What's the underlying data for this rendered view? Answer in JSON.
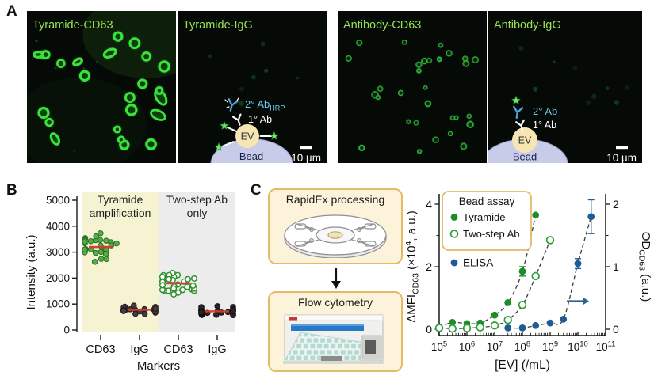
{
  "colors": {
    "accent_border": "#e5b966",
    "box_bg": "#fcf3da",
    "title_green": "#98e352",
    "micro_bg": "#060a06",
    "bright_ring": "#3ce23c",
    "dim_ring": "#2fae38",
    "faint_dot": "#1f7a26",
    "bead_fill": "#c9cce8",
    "bead_edge": "#989fc6",
    "ev_fill": "#f7e5b4",
    "ab2_blue": "#4f9fd9",
    "ab2_text": "#74c6ef",
    "star_fill": "#70e86e",
    "star_edge": "#2f9e36",
    "median_red": "#d04028",
    "yellow_region": "#f6f3d3",
    "gray_region": "#ececec",
    "green_filled": "#1e8c28",
    "green_open_edge": "#2e9e38",
    "elisa_blue": "#1f5c95",
    "dash_line": "#3a3a3a",
    "axis_ink": "#1a1a1a"
  },
  "panelA": {
    "label": "A",
    "images": [
      {
        "title": "Tyramide-CD63",
        "style": "bright-rings",
        "count": 24,
        "seed": 7
      },
      {
        "title": "Tyramide-IgG",
        "style": "faint-dots",
        "count": 7,
        "seed": 11,
        "schematic": "tyramide",
        "scalebar": "10 µm"
      },
      {
        "title": "Antibody-CD63",
        "style": "dim-rings",
        "count": 30,
        "seed": 23
      },
      {
        "title": "Antibody-IgG",
        "style": "faint-dots",
        "count": 9,
        "seed": 31,
        "schematic": "antibody",
        "scalebar": "10 µm"
      }
    ],
    "schematics": {
      "tyramide": {
        "secondary": [
          [
            "2° Ab"
          ],
          [
            "HRP",
            "sub"
          ]
        ],
        "primary": "1° Ab",
        "ev": "EV",
        "bead": "Bead"
      },
      "antibody": {
        "secondary": [
          [
            "2° Ab"
          ]
        ],
        "primary": "1° Ab",
        "ev": "EV",
        "bead": "Bead"
      }
    }
  },
  "panelB": {
    "label": "B"
  },
  "panelC": {
    "label": "C",
    "box1_title": "RapidEx processing",
    "box2_title": "Flow cytometry"
  },
  "chart_data": [
    {
      "panel": "B",
      "type": "scatter",
      "xlabel": "Markers",
      "ylabel": "Intensity (a.u.)",
      "ylim": [
        0,
        5000
      ],
      "yticks": [
        0,
        1000,
        2000,
        3000,
        4000,
        5000
      ],
      "sections": [
        {
          "label_lines": [
            "Tyramide",
            "amplification"
          ],
          "bg": "#f6f3d3"
        },
        {
          "label_lines": [
            "Two-step Ab",
            "only"
          ],
          "bg": "#ececec"
        }
      ],
      "categories": [
        "CD63",
        "IgG",
        "CD63",
        "IgG"
      ],
      "groups": [
        {
          "section": 0,
          "category": "CD63",
          "median": 3200,
          "spread": 270,
          "range": [
            2550,
            3820
          ],
          "n": 28,
          "marker": "filled",
          "fill": "#57ad45",
          "edge": "#2b6e28",
          "seed": 101
        },
        {
          "section": 0,
          "category": "IgG",
          "median": 780,
          "spread": 80,
          "range": [
            600,
            980
          ],
          "n": 30,
          "marker": "filled",
          "fill": "#4a3a40",
          "edge": "#221a1e",
          "seed": 102
        },
        {
          "section": 1,
          "category": "CD63",
          "median": 1800,
          "spread": 210,
          "range": [
            1280,
            2260
          ],
          "n": 30,
          "marker": "open",
          "fill": "#ffffff",
          "edge": "#2e8f2e",
          "seed": 103
        },
        {
          "section": 1,
          "category": "IgG",
          "median": 720,
          "spread": 85,
          "range": [
            570,
            990
          ],
          "n": 30,
          "marker": "filled",
          "fill": "#2e2228",
          "edge": "#120a0e",
          "seed": 104
        }
      ],
      "median_color": "#d04028"
    },
    {
      "panel": "C",
      "type": "line",
      "x_scale": "log",
      "x_axis": {
        "label": "[EV] (/mL)",
        "tick_exponents": [
          5,
          6,
          7,
          8,
          9,
          10,
          11
        ]
      },
      "left_axis": {
        "label_segments": [
          [
            "ΔMFI"
          ],
          [
            "CD63",
            "sub"
          ],
          [
            " (×10"
          ],
          [
            "4",
            "sup"
          ],
          [
            ", a.u.)"
          ]
        ],
        "ticks": [
          0,
          2,
          4
        ],
        "minor_ticks": [
          1,
          3
        ],
        "lim": [
          0,
          4.4
        ]
      },
      "right_axis": {
        "label_segments": [
          [
            "OD"
          ],
          [
            "CD63",
            "sub"
          ],
          [
            " (a.u.)"
          ]
        ],
        "ticks": [
          0,
          1,
          2
        ],
        "minor_ticks": [
          0.5,
          1.5
        ],
        "lim": [
          0,
          2.2
        ]
      },
      "legend": {
        "title": "Bead assay",
        "items": [
          {
            "label": "Tyramide",
            "marker": "filled",
            "color": "#1e8c28"
          },
          {
            "label": "Two-step Ab",
            "marker": "open",
            "color": "#2e9e38"
          }
        ],
        "extra_item": {
          "label": "ELISA",
          "marker": "filled",
          "color": "#1f5c95"
        }
      },
      "series": [
        {
          "name": "Tyramide",
          "axis": "left",
          "marker": "filled",
          "color": "#1e8c28",
          "x": [
            100000.0,
            300000.0,
            1000000.0,
            3000000.0,
            10000000.0,
            30000000.0,
            100000000.0,
            300000000.0
          ],
          "y": [
            0.05,
            0.22,
            0.18,
            0.2,
            0.45,
            0.85,
            1.85,
            3.65
          ],
          "yerr": [
            0,
            0,
            0,
            0,
            0,
            0,
            0.15,
            0
          ]
        },
        {
          "name": "Two-step Ab",
          "axis": "left",
          "marker": "open",
          "color": "#2e9e38",
          "x": [
            100000.0,
            300000.0,
            1000000.0,
            3000000.0,
            10000000.0,
            30000000.0,
            100000000.0,
            300000000.0,
            1000000000.0
          ],
          "y": [
            0.04,
            0.02,
            0.03,
            0.06,
            0.12,
            0.3,
            0.78,
            1.7,
            2.85
          ],
          "yerr": [
            0,
            0,
            0,
            0,
            0,
            0,
            0,
            0,
            0
          ]
        },
        {
          "name": "ELISA",
          "axis": "right",
          "marker": "filled",
          "color": "#1f5c95",
          "x": [
            30000000.0,
            100000000.0,
            300000000.0,
            1000000000.0,
            3000000000.0,
            10000000000.0,
            30000000000.0
          ],
          "y": [
            0.02,
            0.02,
            0.06,
            0.1,
            0.16,
            1.05,
            1.8
          ],
          "yerr": [
            0,
            0,
            0,
            0,
            0,
            0.08,
            0.27
          ]
        }
      ],
      "arrow": {
        "x_from": 4000000000.0,
        "x_to": 25000000000.0,
        "y_right": 0.45,
        "color": "#2a6496"
      }
    }
  ]
}
